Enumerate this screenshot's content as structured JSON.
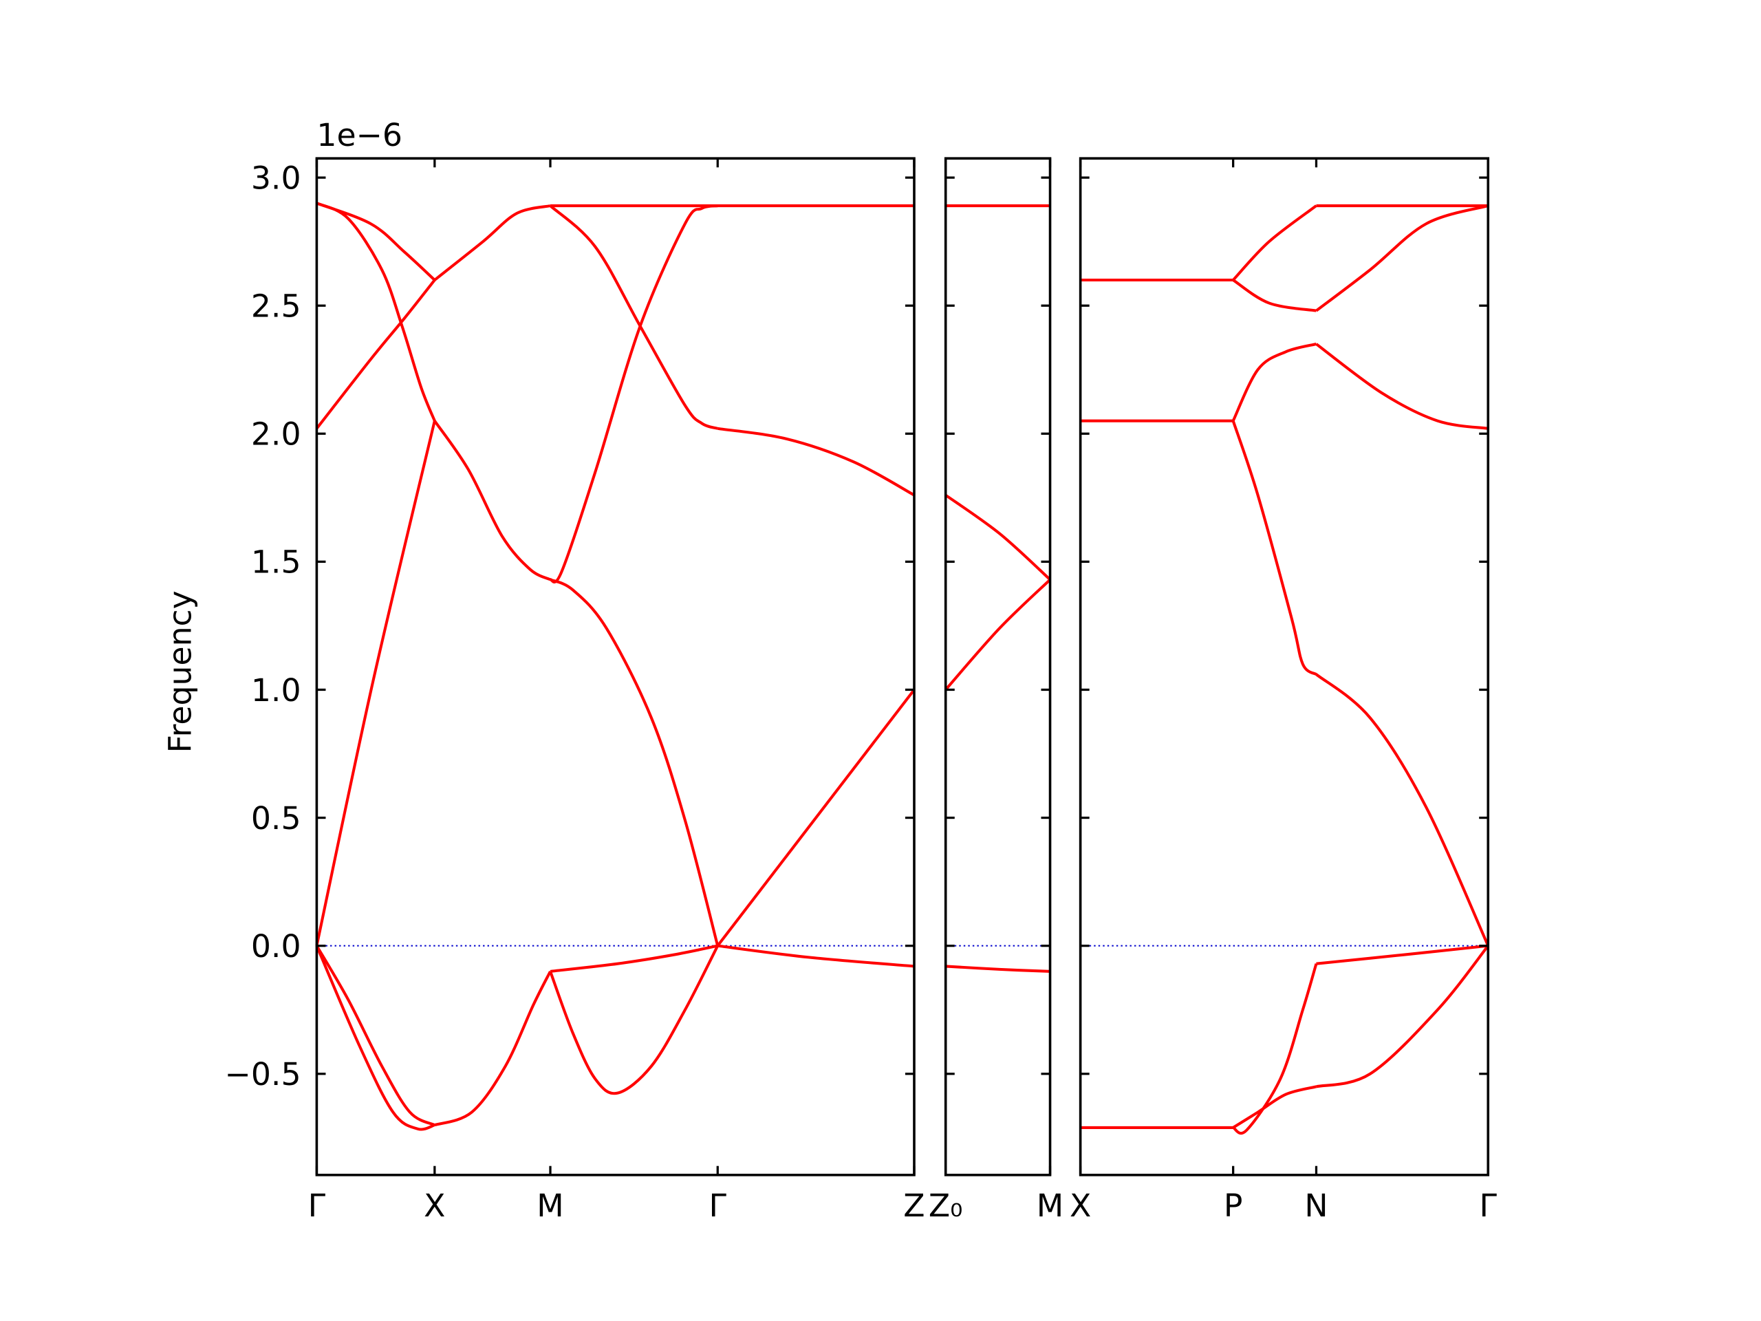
{
  "chart_data": {
    "type": "line",
    "ylabel": "Frequency",
    "y_offset_label": "1e−6",
    "color": "#ff0000",
    "ylim": [
      -0.895,
      3.075
    ],
    "yticks": [
      {
        "value": -0.5,
        "label": "−0.5"
      },
      {
        "value": 0,
        "label": "0.0"
      },
      0.5,
      {
        "value": 1,
        "label": "1.0"
      },
      1.5,
      {
        "value": 2,
        "label": "2.0"
      },
      2.5,
      {
        "value": 3,
        "label": "3.0"
      }
    ],
    "hline": 0,
    "hline_color": "#0000cc",
    "panels": [
      {
        "xlim": [
          0,
          5.32
        ],
        "xticks": [
          {
            "value": 0,
            "label": "Γ"
          },
          {
            "value": 1.05,
            "label": "X"
          },
          {
            "value": 2.08,
            "label": "M"
          },
          {
            "value": 3.57,
            "label": "Γ"
          },
          {
            "value": 5.32,
            "label": "Z"
          }
        ],
        "series": [
          {
            "x": [
              0,
              0.5,
              1.05
            ],
            "values": [
              0,
              1.03,
              2.05
            ]
          },
          {
            "x": [
              1.05,
              1.35,
              1.65,
              1.9,
              2.08
            ],
            "values": [
              2.05,
              1.86,
              1.6,
              1.47,
              1.43
            ]
          },
          {
            "x": [
              2.08,
              2.28,
              2.58,
              2.98,
              3.28,
              3.57
            ],
            "values": [
              1.43,
              1.39,
              1.24,
              0.89,
              0.49,
              0
            ]
          },
          {
            "x": [
              3.57,
              5.32
            ],
            "values": [
              0,
              1.0
            ]
          },
          {
            "x": [
              0,
              0.48,
              0.78,
              1.05
            ],
            "values": [
              2.02,
              2.29,
              2.45,
              2.6
            ]
          },
          {
            "x": [
              1.05,
              1.48,
              1.78,
              2.08
            ],
            "values": [
              2.6,
              2.75,
              2.86,
              2.89
            ]
          },
          {
            "x": [
              2.08,
              3.57,
              5.32
            ],
            "values": [
              2.89,
              2.89,
              2.89
            ]
          },
          {
            "x": [
              0,
              0.48,
              0.78,
              1.05
            ],
            "values": [
              2.9,
              2.82,
              2.71,
              2.6
            ]
          },
          {
            "x": [
              0,
              0.28,
              0.58,
              0.76,
              0.93,
              1.05
            ],
            "values": [
              2.9,
              2.84,
              2.64,
              2.42,
              2.18,
              2.05
            ]
          },
          {
            "x": [
              2.08,
              2.48,
              2.88,
              3.28,
              3.43,
              3.57
            ],
            "values": [
              2.89,
              2.73,
              2.42,
              2.11,
              2.04,
              2.02
            ]
          },
          {
            "x": [
              3.57,
              4.18,
              4.78,
              5.32
            ],
            "values": [
              2.02,
              1.98,
              1.89,
              1.76
            ]
          },
          {
            "x": [
              2.08,
              2.18,
              2.48,
              2.88,
              3.28,
              3.43,
              3.57
            ],
            "values": [
              1.43,
              1.46,
              1.85,
              2.42,
              2.82,
              2.88,
              2.89
            ]
          },
          {
            "x": [
              0,
              0.38,
              0.68,
              0.9,
              1.05
            ],
            "values": [
              0,
              -0.39,
              -0.65,
              -0.715,
              -0.7
            ]
          },
          {
            "x": [
              0,
              0.28,
              0.58,
              0.83,
              1.05
            ],
            "values": [
              0,
              -0.21,
              -0.47,
              -0.65,
              -0.7
            ]
          },
          {
            "x": [
              1.05,
              1.38,
              1.68,
              1.93,
              2.08
            ],
            "values": [
              -0.7,
              -0.65,
              -0.47,
              -0.23,
              -0.1
            ]
          },
          {
            "x": [
              2.08,
              2.68,
              3.18,
              3.57
            ],
            "values": [
              -0.1,
              -0.07,
              -0.035,
              0
            ]
          },
          {
            "x": [
              2.08,
              2.28,
              2.48,
              2.68,
              2.98,
              3.28,
              3.57
            ],
            "values": [
              -0.1,
              -0.34,
              -0.52,
              -0.575,
              -0.47,
              -0.25,
              0
            ]
          },
          {
            "x": [
              3.57,
              4.38,
              5.32
            ],
            "values": [
              0,
              -0.045,
              -0.08
            ]
          }
        ]
      },
      {
        "xlim": [
          0,
          0.93
        ],
        "xticks": [
          {
            "value": 0,
            "label": "Z₀"
          },
          {
            "value": 0.93,
            "label": "M"
          }
        ],
        "series": [
          {
            "x": [
              0,
              0.93
            ],
            "values": [
              2.89,
              2.89
            ]
          },
          {
            "x": [
              0,
              0.48,
              0.93
            ],
            "values": [
              1.76,
              1.61,
              1.43
            ]
          },
          {
            "x": [
              0,
              0.48,
              0.93
            ],
            "values": [
              1.0,
              1.24,
              1.43
            ]
          },
          {
            "x": [
              0,
              0.48,
              0.93
            ],
            "values": [
              -0.08,
              -0.092,
              -0.1
            ]
          }
        ]
      },
      {
        "xlim": [
          0,
          3.63
        ],
        "xticks": [
          {
            "value": 0,
            "label": "X"
          },
          {
            "value": 1.36,
            "label": "P"
          },
          {
            "value": 2.1,
            "label": "N"
          },
          {
            "value": 3.63,
            "label": "Γ"
          }
        ],
        "series": [
          {
            "x": [
              0,
              1.36
            ],
            "values": [
              2.6,
              2.6
            ]
          },
          {
            "x": [
              0,
              1.36
            ],
            "values": [
              2.05,
              2.05
            ]
          },
          {
            "x": [
              0,
              1.36
            ],
            "values": [
              -0.71,
              -0.71
            ]
          },
          {
            "x": [
              1.36,
              1.68,
              2.1
            ],
            "values": [
              2.6,
              2.75,
              2.89
            ]
          },
          {
            "x": [
              1.36,
              1.68,
              2.1
            ],
            "values": [
              2.6,
              2.51,
              2.48
            ]
          },
          {
            "x": [
              1.36,
              1.58,
              1.83,
              2.1
            ],
            "values": [
              2.05,
              2.25,
              2.32,
              2.35
            ]
          },
          {
            "x": [
              1.36,
              1.58,
              1.88,
              1.98,
              2.1
            ],
            "values": [
              2.05,
              1.76,
              1.28,
              1.1,
              1.06
            ]
          },
          {
            "x": [
              1.36,
              1.48,
              1.78,
              1.98,
              2.1
            ],
            "values": [
              -0.71,
              -0.72,
              -0.52,
              -0.25,
              -0.07
            ]
          },
          {
            "x": [
              1.36,
              1.58,
              1.83,
              2.1
            ],
            "values": [
              -0.71,
              -0.65,
              -0.58,
              -0.55
            ]
          },
          {
            "x": [
              2.1,
              3.63
            ],
            "values": [
              2.89,
              2.89
            ]
          },
          {
            "x": [
              2.1,
              2.58,
              3.08,
              3.63
            ],
            "values": [
              2.48,
              2.64,
              2.82,
              2.89
            ]
          },
          {
            "x": [
              2.1,
              2.68,
              3.18,
              3.63
            ],
            "values": [
              2.35,
              2.16,
              2.05,
              2.02
            ]
          },
          {
            "x": [
              2.1,
              2.58,
              3.08,
              3.63
            ],
            "values": [
              1.06,
              0.89,
              0.54,
              0
            ]
          },
          {
            "x": [
              2.1,
              2.88,
              3.63
            ],
            "values": [
              -0.07,
              -0.035,
              0
            ]
          },
          {
            "x": [
              2.1,
              2.58,
              3.18,
              3.63
            ],
            "values": [
              -0.55,
              -0.5,
              -0.25,
              0
            ]
          }
        ]
      }
    ]
  }
}
